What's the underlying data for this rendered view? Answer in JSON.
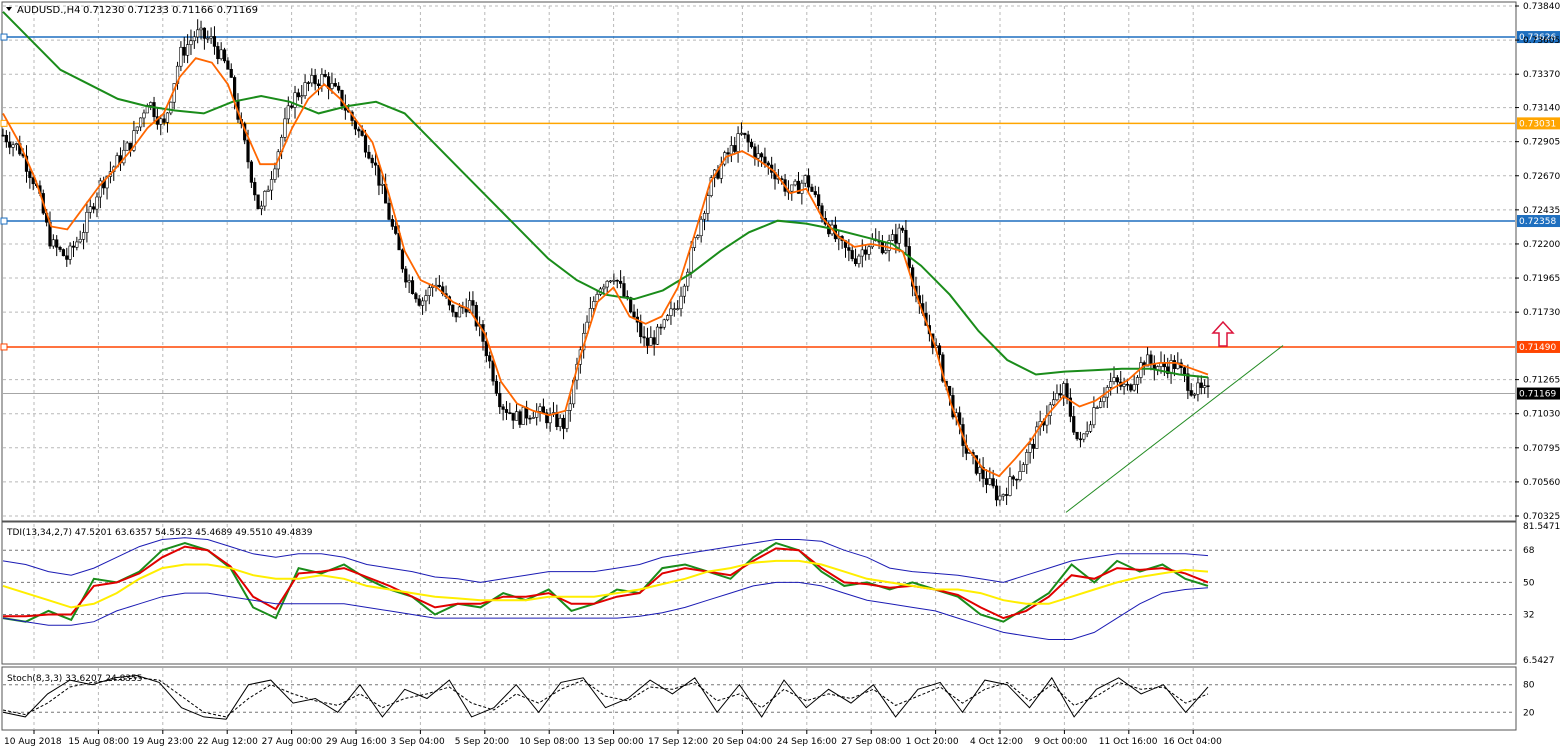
{
  "header": {
    "symbol_label": "AUDUSD.,H4",
    "ohlc": "0.71230 0.71233 0.71166 0.71169"
  },
  "chart_data": [
    {
      "type": "candlestick",
      "ylim": [
        0.70325,
        0.7384
      ],
      "y_ticks": [
        "0.73840",
        "0.73605",
        "0.73370",
        "0.73140",
        "0.72905",
        "0.72670",
        "0.72435",
        "0.72200",
        "0.71965",
        "0.71730",
        "0.71265",
        "0.71030",
        "0.70795",
        "0.70560",
        "0.70325"
      ],
      "x_ticks": [
        "10 Aug 2018",
        "15 Aug 08:00",
        "19 Aug 23:00",
        "22 Aug 12:00",
        "27 Aug 00:00",
        "29 Aug 16:00",
        "3 Sep 04:00",
        "5 Sep 20:00",
        "10 Sep 08:00",
        "13 Sep 00:00",
        "17 Sep 12:00",
        "20 Sep 04:00",
        "24 Sep 16:00",
        "27 Sep 08:00",
        "1 Oct 20:00",
        "4 Oct 12:00",
        "9 Oct 00:00",
        "11 Oct 16:00",
        "16 Oct 04:00"
      ],
      "close_path": [
        0.7295,
        0.7286,
        0.7262,
        0.722,
        0.721,
        0.723,
        0.726,
        0.7275,
        0.729,
        0.732,
        0.73,
        0.735,
        0.7365,
        0.736,
        0.734,
        0.729,
        0.724,
        0.728,
        0.732,
        0.733,
        0.7335,
        0.732,
        0.73,
        0.728,
        0.724,
        0.72,
        0.718,
        0.7195,
        0.717,
        0.718,
        0.715,
        0.711,
        0.71,
        0.7105,
        0.71,
        0.7095,
        0.715,
        0.719,
        0.72,
        0.7175,
        0.715,
        0.716,
        0.718,
        0.722,
        0.726,
        0.728,
        0.7295,
        0.728,
        0.727,
        0.7255,
        0.7265,
        0.724,
        0.722,
        0.721,
        0.7222,
        0.7218,
        0.723,
        0.7175,
        0.715,
        0.711,
        0.7075,
        0.706,
        0.7045,
        0.706,
        0.708,
        0.7105,
        0.712,
        0.708,
        0.711,
        0.7125,
        0.712,
        0.714,
        0.7135,
        0.7137,
        0.712,
        0.7117
      ],
      "ema_fast_path": [
        0.731,
        0.729,
        0.7265,
        0.7232,
        0.723,
        0.7245,
        0.726,
        0.7272,
        0.7285,
        0.73,
        0.731,
        0.7335,
        0.7348,
        0.7345,
        0.733,
        0.73,
        0.7275,
        0.7275,
        0.73,
        0.732,
        0.733,
        0.732,
        0.7305,
        0.729,
        0.7255,
        0.7215,
        0.7195,
        0.719,
        0.718,
        0.7175,
        0.7158,
        0.7125,
        0.711,
        0.7105,
        0.7102,
        0.7105,
        0.7145,
        0.718,
        0.719,
        0.717,
        0.7165,
        0.717,
        0.719,
        0.7225,
        0.7262,
        0.728,
        0.7284,
        0.7278,
        0.727,
        0.7255,
        0.7258,
        0.7238,
        0.7225,
        0.7218,
        0.722,
        0.7218,
        0.7215,
        0.718,
        0.715,
        0.711,
        0.708,
        0.7065,
        0.706,
        0.7072,
        0.7085,
        0.7102,
        0.7115,
        0.7108,
        0.7112,
        0.712,
        0.7126,
        0.7136,
        0.7138,
        0.7138,
        0.7134,
        0.713
      ],
      "ema_slow_path": [
        0.738,
        0.736,
        0.734,
        0.733,
        0.732,
        0.7315,
        0.7312,
        0.731,
        0.7318,
        0.7322,
        0.7318,
        0.731,
        0.7315,
        0.7318,
        0.731,
        0.729,
        0.727,
        0.725,
        0.723,
        0.721,
        0.7195,
        0.7185,
        0.7182,
        0.7188,
        0.72,
        0.7215,
        0.7228,
        0.7236,
        0.7234,
        0.723,
        0.7225,
        0.722,
        0.7205,
        0.7185,
        0.716,
        0.714,
        0.713,
        0.7132,
        0.7133,
        0.7134,
        0.7134,
        0.713,
        0.7128
      ],
      "horizontal_levels": [
        {
          "label": "0.73626",
          "value": 0.73626,
          "color": "#1e6fbf"
        },
        {
          "label": "0.73031",
          "value": 0.73031,
          "color": "#ffa500"
        },
        {
          "label": "0.72358",
          "value": 0.72358,
          "color": "#1e6fbf"
        },
        {
          "label": "0.71490",
          "value": 0.7149,
          "color": "#ff4500"
        }
      ],
      "current_price": {
        "label": "0.71169",
        "value": 0.71169
      },
      "trendline": {
        "from_value": 0.7035,
        "to_value": 0.715,
        "color": "#228b22"
      },
      "colors": {
        "ema_fast": "#ff6600",
        "ema_slow": "#1a8c1a",
        "candle": "#000000",
        "arrow": "#dc143c"
      }
    },
    {
      "type": "line",
      "label": "TDI(13,34,2,7) 47.5201 63.6357 54.5523 45.4689 49.5510 49.4839",
      "ylim": [
        6.5427,
        81.5471
      ],
      "y_ticks": [
        "81.5471",
        "68",
        "50",
        "32",
        "6.5427"
      ],
      "levels": [
        68,
        50,
        32
      ],
      "series": [
        {
          "color": "#1a8c1a",
          "values": [
            30,
            28,
            34,
            29,
            52,
            50,
            56,
            68,
            72,
            68,
            58,
            36,
            30,
            58,
            55,
            60,
            52,
            46,
            42,
            32,
            38,
            36,
            44,
            40,
            46,
            34,
            38,
            46,
            44,
            58,
            60,
            56,
            52,
            64,
            72,
            68,
            56,
            48,
            50,
            46,
            50,
            46,
            42,
            32,
            28,
            36,
            44,
            60,
            50,
            62,
            56,
            60,
            52,
            48
          ]
        },
        {
          "color": "#e00000",
          "values": [
            31,
            31,
            32,
            32,
            48,
            50,
            55,
            64,
            70,
            68,
            59,
            42,
            35,
            55,
            56,
            58,
            53,
            48,
            42,
            36,
            38,
            38,
            42,
            42,
            44,
            38,
            38,
            42,
            44,
            55,
            58,
            56,
            54,
            62,
            69,
            68,
            58,
            50,
            49,
            47,
            48,
            46,
            43,
            36,
            30,
            34,
            42,
            54,
            52,
            58,
            57,
            58,
            55,
            50
          ]
        },
        {
          "color": "#ffee00",
          "values": [
            48,
            44,
            40,
            36,
            38,
            44,
            52,
            58,
            60,
            60,
            58,
            54,
            52,
            52,
            54,
            52,
            48,
            46,
            44,
            42,
            41,
            40,
            40,
            40,
            42,
            42,
            42,
            44,
            46,
            49,
            52,
            56,
            58,
            61,
            62,
            62,
            60,
            56,
            52,
            50,
            48,
            46,
            46,
            44,
            40,
            38,
            38,
            42,
            46,
            50,
            53,
            55,
            57,
            56
          ]
        },
        {
          "color": "#1c1cb4",
          "values": [
            62,
            60,
            56,
            54,
            58,
            64,
            70,
            74,
            75,
            74,
            70,
            66,
            64,
            66,
            66,
            64,
            60,
            58,
            56,
            53,
            52,
            50,
            52,
            54,
            56,
            56,
            56,
            58,
            60,
            64,
            66,
            68,
            70,
            72,
            74,
            74,
            73,
            68,
            64,
            58,
            56,
            55,
            54,
            52,
            50,
            54,
            58,
            62,
            64,
            66,
            66,
            66,
            66,
            65
          ]
        },
        {
          "color": "#1c1cb4",
          "values": [
            30,
            28,
            26,
            26,
            28,
            34,
            38,
            42,
            44,
            44,
            42,
            40,
            38,
            38,
            38,
            38,
            36,
            34,
            32,
            30,
            30,
            30,
            30,
            30,
            30,
            30,
            30,
            30,
            31,
            33,
            36,
            40,
            44,
            48,
            50,
            50,
            48,
            44,
            40,
            38,
            36,
            34,
            30,
            26,
            22,
            20,
            18,
            18,
            22,
            30,
            38,
            44,
            46,
            47
          ]
        }
      ]
    },
    {
      "type": "line",
      "label": "Stoch(8,3,3) 33.6207 24.8355",
      "ylim": [
        0,
        100
      ],
      "y_ticks": [
        "80",
        "20"
      ],
      "levels": [
        80,
        20
      ],
      "series": [
        {
          "color": "#000000",
          "dash": false,
          "values": [
            20,
            10,
            60,
            90,
            80,
            95,
            100,
            85,
            30,
            10,
            5,
            80,
            90,
            40,
            50,
            20,
            80,
            10,
            70,
            50,
            90,
            10,
            30,
            80,
            20,
            85,
            95,
            30,
            50,
            90,
            60,
            95,
            20,
            80,
            10,
            90,
            30,
            70,
            40,
            80,
            10,
            70,
            85,
            20,
            90,
            80,
            30,
            95,
            10,
            70,
            95,
            60,
            80,
            20,
            75
          ]
        },
        {
          "color": "#000000",
          "dash": true,
          "values": [
            25,
            15,
            40,
            75,
            85,
            90,
            95,
            90,
            55,
            20,
            10,
            50,
            80,
            60,
            45,
            35,
            60,
            30,
            50,
            60,
            75,
            40,
            25,
            60,
            40,
            70,
            90,
            55,
            45,
            75,
            70,
            85,
            45,
            60,
            30,
            70,
            45,
            60,
            50,
            70,
            35,
            55,
            75,
            40,
            70,
            85,
            45,
            80,
            35,
            55,
            85,
            70,
            75,
            40,
            60
          ]
        }
      ]
    }
  ]
}
